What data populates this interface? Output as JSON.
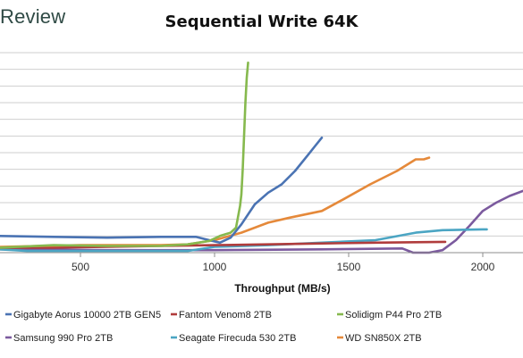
{
  "header": {
    "brand": "Review"
  },
  "chart_data": {
    "type": "line",
    "title": "Sequential Write 64K",
    "xlabel": "Throughput (MB/s)",
    "ylabel": "",
    "xlim": [
      200,
      2150
    ],
    "ylim": [
      0,
      12
    ],
    "x_ticks": [
      500,
      1000,
      1500,
      2000
    ],
    "y_gridlines": [
      0,
      1,
      2,
      3,
      4,
      5,
      6,
      7,
      8,
      9,
      10,
      11,
      12
    ],
    "grid": "horizontal",
    "legend_position": "bottom",
    "series": [
      {
        "name": "Gigabyte Aorus 10000 2TB GEN5",
        "color": "#4a73b3",
        "points": [
          [
            200,
            1.0
          ],
          [
            400,
            0.95
          ],
          [
            600,
            0.9
          ],
          [
            800,
            0.95
          ],
          [
            930,
            0.95
          ],
          [
            980,
            0.75
          ],
          [
            1020,
            0.6
          ],
          [
            1060,
            0.9
          ],
          [
            1100,
            1.7
          ],
          [
            1150,
            2.9
          ],
          [
            1200,
            3.6
          ],
          [
            1250,
            4.1
          ],
          [
            1300,
            4.9
          ],
          [
            1350,
            5.9
          ],
          [
            1375,
            6.4
          ],
          [
            1400,
            6.9
          ]
        ]
      },
      {
        "name": "Fantom Venom8 2TB",
        "color": "#b03c3c",
        "points": [
          [
            200,
            0.3
          ],
          [
            400,
            0.3
          ],
          [
            600,
            0.35
          ],
          [
            800,
            0.4
          ],
          [
            1000,
            0.45
          ],
          [
            1200,
            0.5
          ],
          [
            1400,
            0.55
          ],
          [
            1600,
            0.6
          ],
          [
            1860,
            0.65
          ]
        ]
      },
      {
        "name": "Solidigm P44 Pro 2TB",
        "color": "#86b94e",
        "points": [
          [
            200,
            0.3
          ],
          [
            400,
            0.45
          ],
          [
            600,
            0.4
          ],
          [
            800,
            0.4
          ],
          [
            900,
            0.5
          ],
          [
            980,
            0.7
          ],
          [
            1020,
            1.0
          ],
          [
            1060,
            1.2
          ],
          [
            1080,
            1.5
          ],
          [
            1095,
            2.8
          ],
          [
            1100,
            3.5
          ],
          [
            1105,
            5.0
          ],
          [
            1110,
            7.0
          ],
          [
            1115,
            9.0
          ],
          [
            1120,
            10.5
          ],
          [
            1125,
            11.4
          ]
        ]
      },
      {
        "name": "Samsung 990 Pro 2TB",
        "color": "#7b5a9e",
        "points": [
          [
            200,
            0.2
          ],
          [
            600,
            0.15
          ],
          [
            1000,
            0.15
          ],
          [
            1400,
            0.2
          ],
          [
            1700,
            0.25
          ],
          [
            1740,
            0.0
          ],
          [
            1800,
            0.0
          ],
          [
            1850,
            0.15
          ],
          [
            1900,
            0.75
          ],
          [
            1950,
            1.6
          ],
          [
            2000,
            2.5
          ],
          [
            2050,
            3.0
          ],
          [
            2100,
            3.4
          ],
          [
            2150,
            3.7
          ]
        ]
      },
      {
        "name": "Seagate Firecuda 530 2TB",
        "color": "#4ba5c3",
        "points": [
          [
            200,
            0.2
          ],
          [
            300,
            0.1
          ],
          [
            500,
            0.1
          ],
          [
            900,
            0.1
          ],
          [
            1000,
            0.35
          ],
          [
            1200,
            0.45
          ],
          [
            1400,
            0.6
          ],
          [
            1600,
            0.75
          ],
          [
            1750,
            1.2
          ],
          [
            1850,
            1.35
          ],
          [
            2000,
            1.4
          ],
          [
            2015,
            1.4
          ]
        ]
      },
      {
        "name": "WD SN850X 2TB",
        "color": "#e5893a",
        "points": [
          [
            200,
            0.35
          ],
          [
            500,
            0.45
          ],
          [
            800,
            0.45
          ],
          [
            900,
            0.5
          ],
          [
            1000,
            0.75
          ],
          [
            1100,
            1.2
          ],
          [
            1200,
            1.8
          ],
          [
            1280,
            2.1
          ],
          [
            1400,
            2.5
          ],
          [
            1480,
            3.2
          ],
          [
            1580,
            4.1
          ],
          [
            1680,
            4.9
          ],
          [
            1750,
            5.6
          ],
          [
            1780,
            5.6
          ],
          [
            1800,
            5.7
          ]
        ]
      }
    ]
  }
}
